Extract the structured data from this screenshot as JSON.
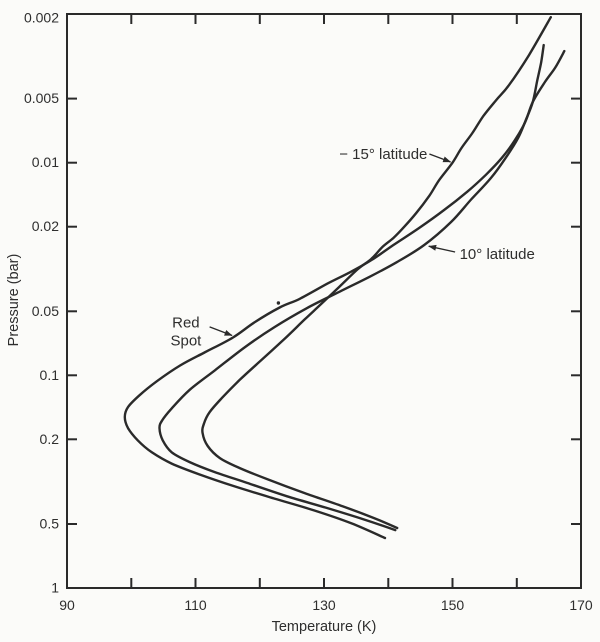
{
  "figure": {
    "description": "Temperature versus pressure profiles",
    "ink_color": "#2a2a2a",
    "paper_color": "#fbfbf9"
  },
  "chart_data": {
    "type": "line",
    "title": "",
    "xlabel": "Temperature (K)",
    "ylabel": "Pressure (bar)",
    "x_axis": {
      "min": 90,
      "max": 170,
      "tick_marks": [
        100,
        110,
        120,
        130,
        140,
        150,
        160
      ],
      "tick_labels": [
        {
          "value": 90,
          "text": "90"
        },
        {
          "value": 110,
          "text": "110"
        },
        {
          "value": 130,
          "text": "130"
        },
        {
          "value": 150,
          "text": "150"
        },
        {
          "value": 170,
          "text": "170"
        }
      ]
    },
    "y_axis": {
      "scale": "log",
      "min": 0.002,
      "max": 1,
      "tick_marks": [
        0.005,
        0.01,
        0.02,
        0.05,
        0.1,
        0.2,
        0.5
      ],
      "tick_labels": [
        {
          "value": 0.002,
          "text": "0.002"
        },
        {
          "value": 0.005,
          "text": "0.005"
        },
        {
          "value": 0.01,
          "text": "0.01"
        },
        {
          "value": 0.02,
          "text": "0.02"
        },
        {
          "value": 0.05,
          "text": "0.05"
        },
        {
          "value": 0.1,
          "text": "0.1"
        },
        {
          "value": 0.2,
          "text": "0.2"
        },
        {
          "value": 0.5,
          "text": "0.5"
        },
        {
          "value": 1,
          "text": "1"
        }
      ]
    },
    "series": [
      {
        "name": "-15° latitude",
        "points": [
          [
            165.3,
            0.00207
          ],
          [
            161.9,
            0.00312
          ],
          [
            158.8,
            0.00432
          ],
          [
            156.8,
            0.00508
          ],
          [
            154.8,
            0.00604
          ],
          [
            153.1,
            0.00725
          ],
          [
            151.4,
            0.00853
          ],
          [
            150.0,
            0.01
          ],
          [
            147.9,
            0.0121
          ],
          [
            146.4,
            0.0143
          ],
          [
            144.4,
            0.0172
          ],
          [
            142.5,
            0.02
          ],
          [
            140.8,
            0.0226
          ],
          [
            139.1,
            0.0249
          ],
          [
            137.4,
            0.0283
          ],
          [
            135.2,
            0.0318
          ],
          [
            132.4,
            0.0383
          ],
          [
            129.6,
            0.0461
          ],
          [
            127.0,
            0.0546
          ],
          [
            123.9,
            0.0672
          ],
          [
            120.3,
            0.0845
          ],
          [
            116.9,
            0.105
          ],
          [
            114.1,
            0.128
          ],
          [
            112.2,
            0.149
          ],
          [
            111.3,
            0.169
          ],
          [
            111.1,
            0.187
          ],
          [
            111.9,
            0.215
          ],
          [
            113.8,
            0.245
          ],
          [
            116.9,
            0.273
          ],
          [
            121.2,
            0.308
          ],
          [
            127.0,
            0.358
          ],
          [
            133.2,
            0.416
          ],
          [
            137.8,
            0.469
          ],
          [
            141.4,
            0.522
          ]
        ]
      },
      {
        "name": "10° latitude",
        "points": [
          [
            164.2,
            0.0028
          ],
          [
            163.8,
            0.00337
          ],
          [
            163.2,
            0.0041
          ],
          [
            162.5,
            0.00518
          ],
          [
            161.4,
            0.00632
          ],
          [
            160.2,
            0.00767
          ],
          [
            158.3,
            0.00948
          ],
          [
            156.0,
            0.0118
          ],
          [
            152.9,
            0.0149
          ],
          [
            149.8,
            0.019
          ],
          [
            145.6,
            0.0244
          ],
          [
            141.4,
            0.0293
          ],
          [
            137.1,
            0.0344
          ],
          [
            132.4,
            0.0405
          ],
          [
            127.4,
            0.0482
          ],
          [
            122.3,
            0.0593
          ],
          [
            117.7,
            0.0737
          ],
          [
            113.0,
            0.0948
          ],
          [
            109.1,
            0.117
          ],
          [
            106.3,
            0.143
          ],
          [
            104.8,
            0.163
          ],
          [
            104.4,
            0.177
          ],
          [
            104.9,
            0.202
          ],
          [
            106.3,
            0.23
          ],
          [
            109.1,
            0.256
          ],
          [
            113.0,
            0.285
          ],
          [
            118.1,
            0.321
          ],
          [
            124.2,
            0.37
          ],
          [
            130.4,
            0.42
          ],
          [
            136.0,
            0.474
          ],
          [
            141.1,
            0.534
          ]
        ]
      },
      {
        "name": "Red Spot",
        "points": [
          [
            167.4,
            0.00299
          ],
          [
            166.0,
            0.00357
          ],
          [
            164.4,
            0.00417
          ],
          [
            162.5,
            0.00518
          ],
          [
            161.3,
            0.00645
          ],
          [
            159.7,
            0.00785
          ],
          [
            157.7,
            0.00948
          ],
          [
            155.2,
            0.0114
          ],
          [
            152.3,
            0.0137
          ],
          [
            148.7,
            0.0167
          ],
          [
            144.8,
            0.0203
          ],
          [
            140.8,
            0.0244
          ],
          [
            137.4,
            0.0287
          ],
          [
            134.0,
            0.0328
          ],
          [
            130.5,
            0.0371
          ],
          [
            126.2,
            0.0437
          ],
          [
            123.1,
            0.048
          ],
          [
            119.2,
            0.0563
          ],
          [
            115.8,
            0.0665
          ],
          [
            111.4,
            0.0781
          ],
          [
            107.6,
            0.0899
          ],
          [
            104.1,
            0.106
          ],
          [
            101.3,
            0.124
          ],
          [
            99.5,
            0.141
          ],
          [
            99.0,
            0.157
          ],
          [
            99.5,
            0.177
          ],
          [
            101.0,
            0.202
          ],
          [
            103.2,
            0.23
          ],
          [
            106.3,
            0.26
          ],
          [
            110.7,
            0.293
          ],
          [
            116.1,
            0.333
          ],
          [
            122.3,
            0.38
          ],
          [
            128.5,
            0.432
          ],
          [
            134.3,
            0.497
          ],
          [
            139.5,
            0.582
          ]
        ]
      }
    ],
    "annotations": [
      {
        "id": "minus15-label",
        "lines": [
          "− 15° latitude"
        ],
        "anchor": "end",
        "T": 146.1,
        "P": 0.0091,
        "arrow": {
          "from": [
            146.4,
            0.00911
          ],
          "to": [
            149.7,
            0.00993
          ]
        }
      },
      {
        "id": "ten-label",
        "lines": [
          "10° latitude"
        ],
        "anchor": "start",
        "T": 151.1,
        "P": 0.0269,
        "arrow": {
          "from": [
            150.4,
            0.0263
          ],
          "to": [
            146.3,
            0.0247
          ]
        }
      },
      {
        "id": "red-spot-label",
        "lines": [
          "Red",
          "Spot"
        ],
        "anchor": "middle",
        "T": 108.5,
        "P": 0.0565,
        "arrow": {
          "from": [
            112.2,
            0.0592
          ],
          "to": [
            115.7,
            0.065
          ]
        }
      }
    ],
    "specks": [
      {
        "T": 122.9,
        "P": 0.0457
      }
    ],
    "layout_hints": {
      "grid": false,
      "legend": "none (curves labeled with arrows)",
      "frame": "full box with inward ticks on all four sides"
    }
  }
}
